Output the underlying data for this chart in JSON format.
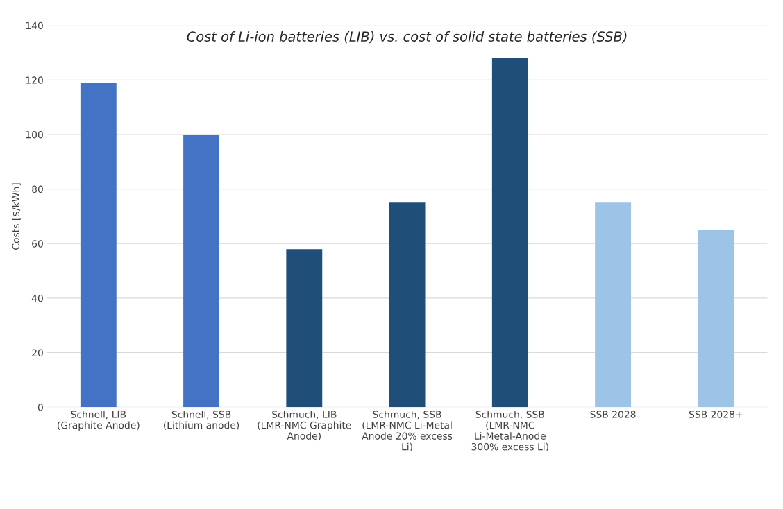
{
  "chart_data": {
    "type": "bar",
    "title": "Cost of Li-ion batteries (LIB) vs. cost of solid state batteries (SSB)",
    "ylabel": "Costs [$/kWh]",
    "categories": [
      "Schnell, LIB (Graphite Anode)",
      "Schnell, SSB (Lithium anode)",
      "Schmuch, LIB (LMR-NMC Graphite Anode)",
      "Schmuch, SSB (LMR-NMC Li-Metal Anode 20% excess Li)",
      "Schmuch, SSB (LMR-NMC Li-Metal-Anode 300% excess Li)",
      "SSB 2028",
      "SSB 2028+"
    ],
    "values": [
      119,
      100,
      58,
      75,
      128,
      75,
      65
    ],
    "colors": [
      "#4472c4",
      "#4472c4",
      "#1f4e79",
      "#1f4e79",
      "#1f4e79",
      "#9dc3e6",
      "#9dc3e6"
    ],
    "ylim": [
      0,
      140
    ],
    "yticks": [
      0,
      20,
      40,
      60,
      80,
      100,
      120,
      140
    ],
    "grid": "y"
  }
}
